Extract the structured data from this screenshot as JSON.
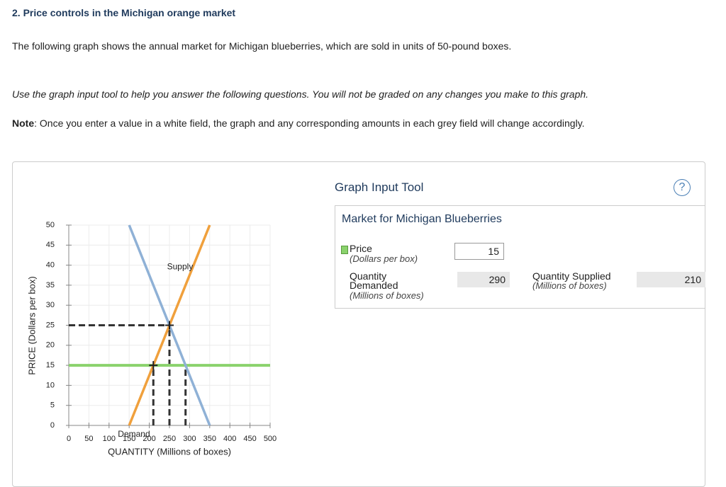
{
  "header": {
    "title": "2. Price controls in the Michigan orange market",
    "intro": "The following graph shows the annual market for Michigan blueberries, which are sold in units of 50-pound boxes.",
    "instruction": "Use the graph input tool to help you answer the following questions. You will not be graded on any changes you make to this graph.",
    "note_label": "Note",
    "note_text": ": Once you enter a value in a white field, the graph and any corresponding amounts in each grey field will change accordingly."
  },
  "chart_data": {
    "type": "line",
    "x_label": "QUANTITY (Millions of boxes)",
    "y_label": "PRICE (Dollars per box)",
    "xlim": [
      0,
      500
    ],
    "xticks": [
      0,
      50,
      100,
      150,
      200,
      250,
      300,
      350,
      400,
      450,
      500
    ],
    "ylim": [
      0,
      50
    ],
    "yticks": [
      0,
      5,
      10,
      15,
      20,
      25,
      30,
      35,
      40,
      45,
      50
    ],
    "grid": true,
    "series": [
      {
        "name": "Supply",
        "color": "#f0a03c",
        "x": [
          150,
          350
        ],
        "values": [
          0,
          50
        ]
      },
      {
        "name": "Demand",
        "color": "#8fb1d6",
        "x": [
          150,
          350
        ],
        "values": [
          50,
          0
        ]
      }
    ],
    "price_line": {
      "color": "#8ad26c",
      "x": [
        0,
        500
      ],
      "values": [
        15,
        15
      ]
    },
    "guides": [
      {
        "x": [
          0,
          250
        ],
        "values": [
          25,
          25
        ]
      },
      {
        "x": [
          250,
          250
        ],
        "values": [
          0,
          25
        ]
      },
      {
        "x": [
          210,
          210
        ],
        "values": [
          0,
          15
        ]
      },
      {
        "x": [
          290,
          290
        ],
        "values": [
          0,
          15
        ]
      }
    ],
    "points": [
      {
        "x": 250,
        "value": 25
      },
      {
        "x": 210,
        "value": 15
      }
    ]
  },
  "tool": {
    "title": "Graph Input Tool",
    "help": "?",
    "market_title": "Market for Michigan Blueberries",
    "fields": [
      {
        "label": "Price",
        "unit": "(Dollars per box)",
        "value": 15
      },
      {
        "label": "Quantity Demanded",
        "unit": "(Millions of boxes)",
        "value": 290
      },
      {
        "label": "Quantity Supplied",
        "unit": "(Millions of boxes)",
        "value": 210
      }
    ]
  }
}
